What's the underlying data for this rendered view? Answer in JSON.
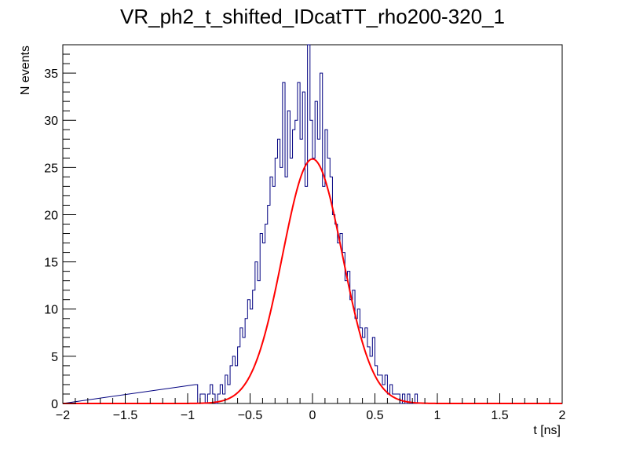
{
  "chart_data": {
    "type": "bar",
    "title": "VR_ph2_t_shifted_IDcatTT_rho200-320_1",
    "xlabel": "t [ns]",
    "ylabel": "N events",
    "xlim": [
      -2,
      2
    ],
    "ylim": [
      0,
      38
    ],
    "grid": false,
    "legend": "none",
    "x_ticks": [
      -2,
      -1.5,
      -1,
      -0.5,
      0,
      0.5,
      1,
      1.5,
      2
    ],
    "x_tick_labels": [
      "−2",
      "−1.5",
      "−1",
      "−0.5",
      "0",
      "0.5",
      "1",
      "1.5",
      "2"
    ],
    "y_ticks": [
      0,
      5,
      10,
      15,
      20,
      25,
      30,
      35
    ],
    "y_tick_labels": [
      "0",
      "5",
      "10",
      "15",
      "20",
      "25",
      "30",
      "35"
    ],
    "series": [
      {
        "kind": "histogram",
        "color": "#000080",
        "bin_low_edges": [
          -0.94,
          -0.92,
          -0.9,
          -0.88,
          -0.86,
          -0.84,
          -0.82,
          -0.8,
          -0.78,
          -0.76,
          -0.74,
          -0.72,
          -0.7,
          -0.68,
          -0.66,
          -0.64,
          -0.62,
          -0.6,
          -0.58,
          -0.56,
          -0.54,
          -0.52,
          -0.5,
          -0.48,
          -0.46,
          -0.44,
          -0.42,
          -0.4,
          -0.38,
          -0.36,
          -0.34,
          -0.32,
          -0.3,
          -0.28,
          -0.26,
          -0.24,
          -0.22,
          -0.2,
          -0.18,
          -0.16,
          -0.14,
          -0.12,
          -0.1,
          -0.08,
          -0.06,
          -0.04,
          -0.02,
          0.0,
          0.02,
          0.04,
          0.06,
          0.08,
          0.1,
          0.12,
          0.14,
          0.16,
          0.18,
          0.2,
          0.22,
          0.24,
          0.26,
          0.28,
          0.3,
          0.32,
          0.34,
          0.36,
          0.38,
          0.4,
          0.42,
          0.44,
          0.46,
          0.48,
          0.5,
          0.52,
          0.54,
          0.56,
          0.58,
          0.6,
          0.62,
          0.64,
          0.66,
          0.68,
          0.7,
          0.72,
          0.74,
          0.76,
          0.78,
          0.8,
          0.82,
          0.84
        ],
        "bin_width": 0.02,
        "counts": [
          2,
          0,
          1,
          1,
          0,
          1,
          2,
          1,
          0,
          1,
          2,
          1,
          3,
          2,
          4,
          5,
          4,
          6,
          8,
          7,
          9,
          11,
          10,
          12,
          15,
          13,
          18,
          17,
          19,
          21,
          24,
          23,
          26,
          28,
          25,
          34,
          24,
          31,
          26,
          29,
          30,
          34,
          28,
          33,
          23,
          38,
          30,
          26,
          32,
          28,
          35,
          23,
          29,
          26,
          24,
          20,
          19,
          17,
          18,
          16,
          13,
          14,
          11,
          12,
          9,
          10,
          8,
          7,
          8,
          6,
          5,
          7,
          4,
          3,
          3,
          2,
          3,
          1,
          2,
          1,
          1,
          1,
          0,
          1,
          0,
          1,
          0,
          0,
          1,
          0
        ]
      },
      {
        "kind": "gaussian_fit",
        "color": "#ff0000",
        "amplitude": 25.9,
        "mean": 0.0,
        "sigma": 0.24,
        "x_range": [
          -2,
          2
        ]
      }
    ]
  }
}
